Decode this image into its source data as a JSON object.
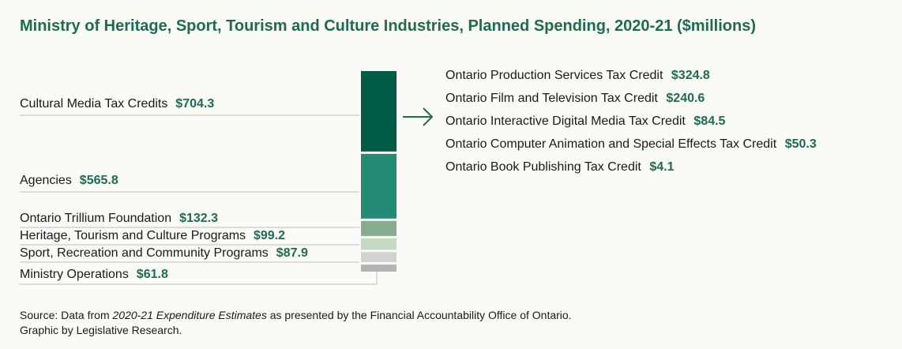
{
  "title": "Ministry of Heritage, Sport, Tourism and Culture Industries, Planned Spending, 2020-21 ($millions)",
  "colors": {
    "accent": "#1e6b52",
    "segments": [
      "#005c47",
      "#238a73",
      "#86ad90",
      "#c3dbc5",
      "#d2d2d2",
      "#b4b4b4"
    ]
  },
  "chart_data": [
    {
      "type": "bar",
      "layout": "stacked-single",
      "categories": [
        "Cultural Media Tax Credits",
        "Agencies",
        "Ontario Trillium Foundation",
        "Heritage, Tourism and Culture Programs",
        "Sport, Recreation and Community Programs",
        "Ministry Operations"
      ],
      "labels": [
        "$704.3",
        "$565.8",
        "$132.3",
        "$99.2",
        "$87.9",
        "$61.8"
      ],
      "values": [
        704.3,
        565.8,
        132.3,
        99.2,
        87.9,
        61.8
      ]
    },
    {
      "type": "table",
      "categories": [
        "Ontario Production Services Tax Credit",
        "Ontario Film and Television Tax Credit",
        "Ontario Interactive Digital Media Tax Credit",
        "Ontario Computer Animation and Special Effects Tax Credit",
        "Ontario Book Publishing Tax Credit"
      ],
      "labels": [
        "$324.8",
        "$240.6",
        "$84.5",
        "$50.3",
        "$4.1"
      ],
      "values": [
        324.8,
        240.6,
        84.5,
        50.3,
        4.1
      ]
    }
  ],
  "source": {
    "prefix": "Source: Data from ",
    "italic": "2020-21 Expenditure Estimates",
    "suffix": " as presented by the Financial Accountability Office of Ontario.",
    "line2": "Graphic by Legislative Research."
  }
}
